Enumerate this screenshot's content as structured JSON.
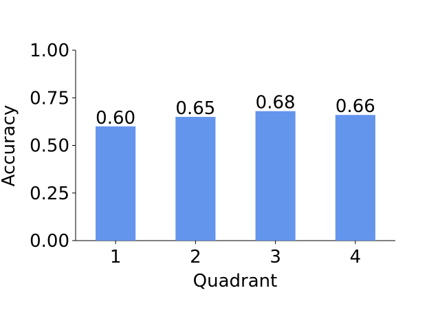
{
  "chart_data": {
    "type": "bar",
    "x_label": "Quadrant",
    "y_label": "Accuracy",
    "categories": [
      "1",
      "2",
      "3",
      "4"
    ],
    "values": [
      0.6,
      0.65,
      0.68,
      0.66
    ],
    "value_labels": [
      "0.60",
      "0.65",
      "0.68",
      "0.66"
    ],
    "color": "#6495ed",
    "ylim": [
      0,
      1
    ],
    "yticks": [
      {
        "value": 0,
        "label": "0.00"
      },
      {
        "value": 0.25,
        "label": "0.25"
      },
      {
        "value": 0.5,
        "label": "0.50"
      },
      {
        "value": 0.75,
        "label": "0.75"
      },
      {
        "value": 1,
        "label": "1.00"
      }
    ],
    "grid": false
  }
}
